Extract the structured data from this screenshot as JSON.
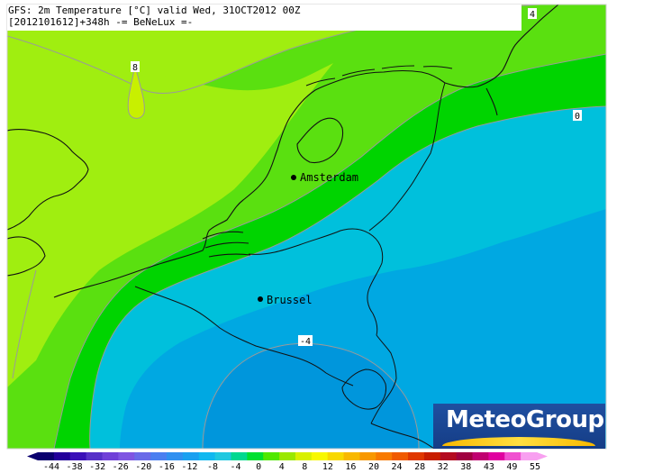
{
  "header": {
    "line1": "GFS: 2m Temperature [°C] valid Wed, 31OCT2012 00Z",
    "line2": "[2012101612]+348h -= BeNeLux =-"
  },
  "cities": [
    {
      "name": "Amsterdam"
    },
    {
      "name": "Brussel"
    }
  ],
  "contour_labels": [
    "8",
    "4",
    "0",
    "-4"
  ],
  "logo": {
    "text": "MeteoGroup"
  },
  "legend": {
    "ticks": [
      "-44",
      "-38",
      "-32",
      "-26",
      "-20",
      "-16",
      "-12",
      "-8",
      "-4",
      "0",
      "4",
      "8",
      "12",
      "16",
      "20",
      "24",
      "28",
      "32",
      "38",
      "43",
      "49",
      "55"
    ],
    "colors": [
      "#0a006e",
      "#22009a",
      "#3a10b8",
      "#5630c8",
      "#7040d8",
      "#7f55e2",
      "#6a6ae8",
      "#4a7ff0",
      "#3090f0",
      "#1aa0f0",
      "#10b8f0",
      "#20c8e0",
      "#00d890",
      "#00e030",
      "#50e800",
      "#9ae800",
      "#d8f000",
      "#f8f800",
      "#f8d800",
      "#f8b800",
      "#f89800",
      "#f87a00",
      "#f05a00",
      "#e03800",
      "#c81e00",
      "#b40a20",
      "#a00040",
      "#c00070",
      "#e000a0",
      "#f050d0",
      "#f8a0f0"
    ],
    "colors_note": "color bar from cold (violet/blue) to hot (red/magenta)"
  },
  "zone_colors": {
    "t8_12": "#a0ee10",
    "t4_8": "#5ae010",
    "t0_4": "#00d400",
    "tm4_0": "#00c0dc",
    "tm8_m4": "#00a8e2"
  }
}
